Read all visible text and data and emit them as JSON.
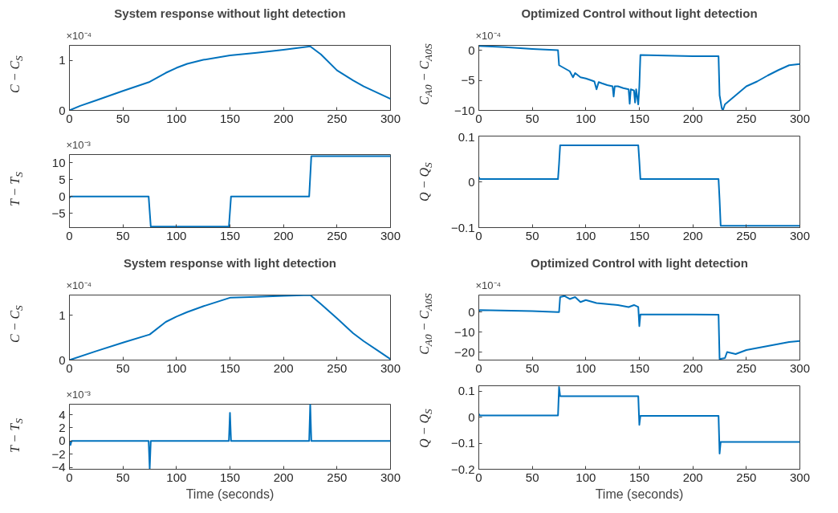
{
  "chart_data": [
    {
      "type": "line",
      "title": "System response without light detection",
      "ylabel": "C − C$_{S}$",
      "annotations": [
        "×10⁻⁴"
      ],
      "color": "#0072bd",
      "xlim": [
        0,
        300
      ],
      "xticks": [
        0,
        50,
        100,
        150,
        200,
        250,
        300
      ],
      "ylim": [
        0,
        1.3
      ],
      "yticks": [
        0,
        1
      ],
      "grid": false,
      "x": [
        0,
        10,
        25,
        50,
        75,
        90,
        100,
        110,
        125,
        150,
        175,
        200,
        225,
        235,
        250,
        265,
        275,
        300
      ],
      "values": [
        0,
        0.09,
        0.2,
        0.39,
        0.57,
        0.75,
        0.85,
        0.93,
        1.01,
        1.1,
        1.15,
        1.21,
        1.28,
        1.12,
        0.8,
        0.6,
        0.48,
        0.23
      ]
    },
    {
      "type": "line",
      "title": "Optimized Control without light detection",
      "ylabel": "C$_{A0}$ − C$_{A0S}$",
      "annotations": [
        "×10⁻⁴"
      ],
      "color": "#0072bd",
      "xlim": [
        0,
        300
      ],
      "xticks": [
        0,
        50,
        100,
        150,
        200,
        250,
        300
      ],
      "ylim": [
        -10,
        0.8
      ],
      "yticks": [
        -10,
        -5,
        0
      ],
      "grid": false,
      "x": [
        0,
        25,
        50,
        74,
        75,
        80,
        85,
        88,
        90,
        95,
        100,
        105,
        108,
        110,
        112,
        115,
        120,
        125,
        126,
        127,
        130,
        135,
        140,
        141,
        142,
        145,
        146,
        147,
        149,
        150,
        151,
        175,
        200,
        224,
        225,
        227,
        228,
        230,
        240,
        250,
        260,
        270,
        280,
        290,
        300
      ],
      "values": [
        0.7,
        0.5,
        0.2,
        0,
        -2.5,
        -3,
        -3.5,
        -4.5,
        -3.8,
        -4.5,
        -4.7,
        -5,
        -5.2,
        -6.5,
        -5.3,
        -5.5,
        -5.8,
        -6,
        -7.7,
        -6,
        -6,
        -6.3,
        -6.5,
        -8.9,
        -6.5,
        -6.7,
        -8.7,
        -6.5,
        -9,
        -6,
        -0.8,
        -0.9,
        -1,
        -1,
        -7.5,
        -9.6,
        -10,
        -9,
        -7.5,
        -6,
        -5.2,
        -4.2,
        -3.3,
        -2.5,
        -2.3
      ]
    },
    {
      "type": "line",
      "ylabel": "T − T$_{S}$",
      "annotations": [
        "×10⁻³"
      ],
      "color": "#0072bd",
      "xlim": [
        0,
        300
      ],
      "xticks": [
        0,
        50,
        100,
        150,
        200,
        250,
        300
      ],
      "ylim": [
        -9.3,
        12.5
      ],
      "yticks": [
        -5,
        0,
        5,
        10
      ],
      "grid": false,
      "x": [
        0,
        1,
        74,
        76,
        149,
        151,
        224,
        226,
        300
      ],
      "values": [
        -0.5,
        0,
        0,
        -9,
        -9,
        0,
        0,
        12,
        12
      ]
    },
    {
      "type": "line",
      "ylabel": "Q − Q$_{S}$",
      "color": "#0072bd",
      "xlim": [
        0,
        300
      ],
      "xticks": [
        0,
        50,
        100,
        150,
        200,
        250,
        300
      ],
      "ylim": [
        -0.1,
        0.1
      ],
      "yticks": [
        -0.1,
        0,
        0.1
      ],
      "grid": false,
      "x": [
        0,
        1,
        74,
        75,
        76,
        149,
        150,
        151,
        224,
        225,
        226,
        300
      ],
      "values": [
        0.01,
        0.006,
        0.006,
        0.04,
        0.08,
        0.08,
        0.045,
        0.006,
        0.006,
        -0.04,
        -0.096,
        -0.096
      ]
    },
    {
      "type": "line",
      "title": "System response with light detection",
      "ylabel": "C − C$_{S}$",
      "annotations": [
        "×10⁻⁴"
      ],
      "color": "#0072bd",
      "xlim": [
        0,
        300
      ],
      "xticks": [
        0,
        50,
        100,
        150,
        200,
        250,
        300
      ],
      "ylim": [
        0,
        1.45
      ],
      "yticks": [
        0,
        1
      ],
      "grid": false,
      "x": [
        0,
        25,
        50,
        75,
        90,
        100,
        110,
        125,
        150,
        175,
        200,
        225,
        235,
        250,
        265,
        275,
        290,
        300
      ],
      "values": [
        0,
        0.2,
        0.39,
        0.57,
        0.85,
        0.97,
        1.07,
        1.2,
        1.39,
        1.41,
        1.43,
        1.45,
        1.25,
        0.93,
        0.6,
        0.42,
        0.18,
        0.02
      ]
    },
    {
      "type": "line",
      "title": "Optimized Control with light detection",
      "ylabel": "C$_{A0}$ − C$_{A0S}$",
      "annotations": [
        "×10⁻⁴"
      ],
      "color": "#0072bd",
      "xlim": [
        0,
        300
      ],
      "xticks": [
        0,
        50,
        100,
        150,
        200,
        250,
        300
      ],
      "ylim": [
        -24,
        8.5
      ],
      "yticks": [
        -20,
        -10,
        0
      ],
      "grid": false,
      "x": [
        0,
        1,
        50,
        74,
        75,
        76,
        80,
        85,
        90,
        95,
        100,
        110,
        120,
        130,
        140,
        145,
        149,
        150,
        151,
        200,
        224,
        225,
        230,
        232,
        240,
        250,
        260,
        270,
        280,
        290,
        300
      ],
      "values": [
        0.5,
        1,
        0.5,
        0,
        0,
        7.5,
        8,
        6.5,
        7.5,
        5,
        6,
        4.5,
        4,
        3.5,
        2.5,
        3.5,
        2.5,
        -7,
        -1.2,
        -1.2,
        -1.3,
        -23.5,
        -23,
        -20,
        -21,
        -19,
        -18,
        -17,
        -16,
        -15,
        -14.5
      ]
    },
    {
      "type": "line",
      "xlabel": "Time (seconds)",
      "ylabel": "T − T$_{S}$",
      "annotations": [
        "×10⁻³"
      ],
      "color": "#0072bd",
      "xlim": [
        0,
        300
      ],
      "xticks": [
        0,
        50,
        100,
        150,
        200,
        250,
        300
      ],
      "ylim": [
        -4.3,
        5.6
      ],
      "yticks": [
        -4,
        -2,
        0,
        2,
        4
      ],
      "grid": false,
      "x": [
        0,
        1,
        2,
        74,
        75,
        76,
        149,
        150,
        151,
        224,
        225,
        226,
        300
      ],
      "values": [
        0,
        -0.6,
        0,
        0,
        -4.2,
        0,
        0,
        4.3,
        0,
        0,
        5.6,
        0,
        0
      ]
    },
    {
      "type": "line",
      "xlabel": "Time (seconds)",
      "ylabel": "Q − Q$_{S}$",
      "color": "#0072bd",
      "xlim": [
        0,
        300
      ],
      "xticks": [
        0,
        50,
        100,
        150,
        200,
        250,
        300
      ],
      "ylim": [
        -0.2,
        0.12
      ],
      "yticks": [
        -0.2,
        -0.1,
        0,
        0.1
      ],
      "grid": false,
      "x": [
        0,
        1,
        74,
        75,
        76,
        149,
        150,
        151,
        224,
        225,
        226,
        300
      ],
      "values": [
        0.012,
        0.006,
        0.006,
        0.115,
        0.08,
        0.08,
        -0.03,
        0.005,
        0.005,
        -0.14,
        -0.095,
        -0.095
      ]
    }
  ]
}
